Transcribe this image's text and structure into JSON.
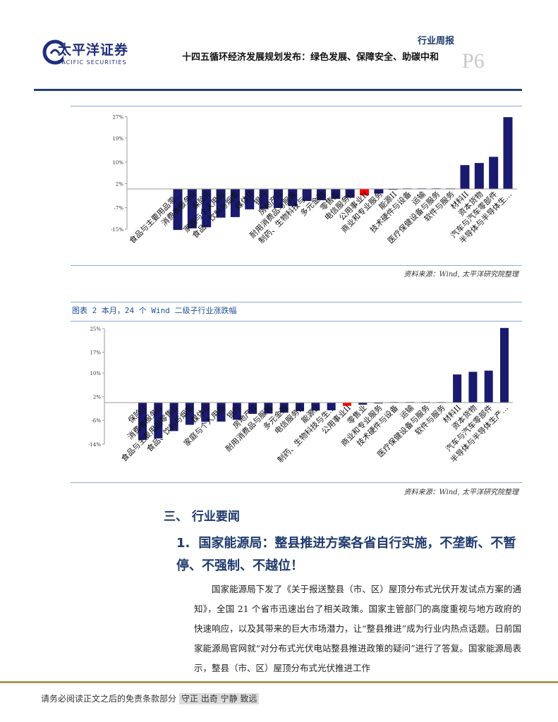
{
  "header": {
    "logo_cn": "太平洋证券",
    "logo_en": "PACIFIC SECURITIES",
    "report_type": "行业周报",
    "title": "十四五循环经济发展规划发布：绿色发展、保障安全、助碳中和",
    "page": "P6"
  },
  "chart1": {
    "source": "资料来源：Wind, 太平洋研究院整理"
  },
  "chart2": {
    "title": "图表 2 本月，24 个 Wind 二级子行业涨跌幅",
    "source": "资料来源：Wind, 太平洋研究院整理"
  },
  "section": {
    "heading": "三、 行业要闻",
    "sub_num": "1.",
    "sub_title": "国家能源局：整县推进方案各省自行实施，不垄断、不暂停、不强制、不越位！",
    "body": "国家能源局下发了《关于报送整县（市、区）屋顶分布式光伏开发试点方案的通知》，全国 21 个省市迅速出台了相关政策。国家主管部门的高度重视与地方政府的快速响应，以及其带来的巨大市场潜力，让“整县推进”成为行业内热点话题。日前国家能源局官网就“对分布式光伏电站整县推进政策的疑问”进行了答复。国家能源局表示，整县（市、区）屋顶分布式光伏推进工作"
  },
  "footer": {
    "disclaimer": "请务必阅读正文之后的免责条款部分",
    "motto": "守正 出奇 宁静 致远"
  },
  "colors": {
    "bar": "#1a1a6e",
    "highlight": "#ff0000",
    "brand": "#1f3a6e"
  },
  "chart_data": [
    {
      "type": "bar",
      "ylim": [
        -15,
        27
      ],
      "yticks": [
        "27%",
        "19%",
        "10%",
        "2%",
        "-7%",
        "-15%"
      ],
      "ytick_values": [
        27,
        19,
        10,
        2,
        -7,
        -15
      ],
      "highlight": "公用事业II",
      "grid": false,
      "categories": [
        "食品与主要用品零…",
        "消费者服务II",
        "保险II",
        "家庭与个人用品",
        "食品、饮料与烟草",
        "媒体II",
        "银行",
        "房地产II",
        "耐用消费品与服装",
        "制药、生物科技与…",
        "多元金融",
        "零售业",
        "电信服务II",
        "公用事业II",
        "商业和专业服务",
        "能源II",
        "技术硬件与设备",
        "运输",
        "医疗保健设备与服务",
        "软件与服务",
        "材料II",
        "资本货物",
        "汽车与汽车零部件",
        "半导体与半导体生…"
      ],
      "values": [
        -15.3,
        -14.7,
        -14.3,
        -10.7,
        -10.5,
        -7.6,
        -7.5,
        -7.1,
        -6.4,
        -4.5,
        -4.2,
        -3.7,
        -3.3,
        -2.4,
        -1.7,
        -0.3,
        0,
        0,
        0,
        0,
        8.9,
        9.7,
        12.0,
        26.8
      ]
    },
    {
      "type": "bar",
      "ylim": [
        -14,
        25
      ],
      "yticks": [
        "25%",
        "17%",
        "10%",
        "2%",
        "-6%",
        "-14%"
      ],
      "ytick_values": [
        25,
        17,
        10,
        2,
        -6,
        -14
      ],
      "highlight": "公用事业II",
      "grid": false,
      "categories": [
        "保险II",
        "消费者服务II",
        "食品与主要用品零售II",
        "食品、饮料与烟草",
        "媒体II",
        "家庭与个人用品",
        "银行",
        "房地产II",
        "耐用消费品与服装",
        "多元金融",
        "电信服务II",
        "能源II",
        "制药、生物科技与生…",
        "公用事业II",
        "零售业",
        "商业和专业服务",
        "技术硬件与设备",
        "运输",
        "医疗保健设备与服务",
        "软件与服务",
        "材料II",
        "资本货物",
        "汽车与汽车零部件",
        "半导体与半导体生产…"
      ],
      "values": [
        -12.6,
        -12.1,
        -9.6,
        -7.5,
        -6.5,
        -6.4,
        -5.8,
        -3.8,
        -3.7,
        -3.4,
        -2.9,
        -2.7,
        -2.6,
        -1.1,
        -0.7,
        -0.3,
        0,
        0,
        0,
        0,
        9.5,
        10.4,
        10.8,
        25.2
      ]
    }
  ]
}
